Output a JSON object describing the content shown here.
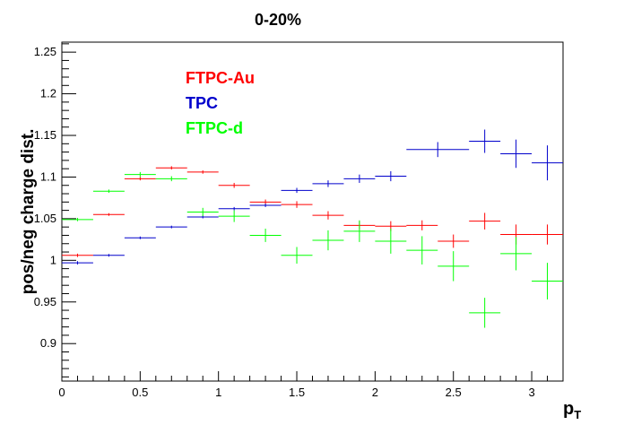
{
  "chart_data": {
    "type": "scatter",
    "title": "0-20%",
    "xlabel_main": "p",
    "xlabel_sub": "T",
    "ylabel": "pos/neg charge dist.",
    "xlim": [
      0,
      3.2
    ],
    "ylim": [
      0.855,
      1.262
    ],
    "x_ticks": [
      "0",
      "0.5",
      "1",
      "1.5",
      "2",
      "2.5",
      "3"
    ],
    "y_ticks": [
      "0.9",
      "0.95",
      "1",
      "1.05",
      "1.1",
      "1.15",
      "1.2",
      "1.25"
    ],
    "grid": false,
    "legend_placement": "top-left",
    "series": [
      {
        "name": "FTPC-Au",
        "color": "#ff0000",
        "points": [
          {
            "x": 0.1,
            "xerr": 0.1,
            "y": 1.006,
            "yerr": 0.002
          },
          {
            "x": 0.3,
            "xerr": 0.1,
            "y": 1.055,
            "yerr": 0.001
          },
          {
            "x": 0.5,
            "xerr": 0.1,
            "y": 1.098,
            "yerr": 0.002
          },
          {
            "x": 0.7,
            "xerr": 0.1,
            "y": 1.111,
            "yerr": 0.002
          },
          {
            "x": 0.9,
            "xerr": 0.1,
            "y": 1.106,
            "yerr": 0.002
          },
          {
            "x": 1.1,
            "xerr": 0.1,
            "y": 1.09,
            "yerr": 0.003
          },
          {
            "x": 1.3,
            "xerr": 0.1,
            "y": 1.07,
            "yerr": 0.003
          },
          {
            "x": 1.5,
            "xerr": 0.1,
            "y": 1.067,
            "yerr": 0.004
          },
          {
            "x": 1.7,
            "xerr": 0.1,
            "y": 1.054,
            "yerr": 0.005
          },
          {
            "x": 1.9,
            "xerr": 0.1,
            "y": 1.042,
            "yerr": 0.005
          },
          {
            "x": 2.1,
            "xerr": 0.1,
            "y": 1.041,
            "yerr": 0.006
          },
          {
            "x": 2.3,
            "xerr": 0.1,
            "y": 1.042,
            "yerr": 0.006
          },
          {
            "x": 2.5,
            "xerr": 0.1,
            "y": 1.023,
            "yerr": 0.008
          },
          {
            "x": 2.7,
            "xerr": 0.1,
            "y": 1.047,
            "yerr": 0.01
          },
          {
            "x": 2.9,
            "xerr": 0.1,
            "y": 1.031,
            "yerr": 0.012
          },
          {
            "x": 3.1,
            "xerr": 0.1,
            "y": 1.031,
            "yerr": 0.012
          }
        ]
      },
      {
        "name": "TPC",
        "color": "#0000cc",
        "points": [
          {
            "x": 0.1,
            "xerr": 0.1,
            "y": 0.997,
            "yerr": 0.002
          },
          {
            "x": 0.3,
            "xerr": 0.1,
            "y": 1.006,
            "yerr": 0.001
          },
          {
            "x": 0.5,
            "xerr": 0.1,
            "y": 1.027,
            "yerr": 0.001
          },
          {
            "x": 0.7,
            "xerr": 0.1,
            "y": 1.04,
            "yerr": 0.001
          },
          {
            "x": 0.9,
            "xerr": 0.1,
            "y": 1.052,
            "yerr": 0.001
          },
          {
            "x": 1.1,
            "xerr": 0.1,
            "y": 1.062,
            "yerr": 0.002
          },
          {
            "x": 1.3,
            "xerr": 0.1,
            "y": 1.066,
            "yerr": 0.002
          },
          {
            "x": 1.5,
            "xerr": 0.1,
            "y": 1.084,
            "yerr": 0.003
          },
          {
            "x": 1.7,
            "xerr": 0.1,
            "y": 1.092,
            "yerr": 0.004
          },
          {
            "x": 1.9,
            "xerr": 0.1,
            "y": 1.098,
            "yerr": 0.005
          },
          {
            "x": 2.1,
            "xerr": 0.1,
            "y": 1.101,
            "yerr": 0.006
          },
          {
            "x": 2.4,
            "xerr": 0.2,
            "y": 1.133,
            "yerr": 0.009
          },
          {
            "x": 2.7,
            "xerr": 0.1,
            "y": 1.143,
            "yerr": 0.014
          },
          {
            "x": 2.9,
            "xerr": 0.1,
            "y": 1.128,
            "yerr": 0.017
          },
          {
            "x": 3.1,
            "xerr": 0.1,
            "y": 1.117,
            "yerr": 0.021
          }
        ]
      },
      {
        "name": "FTPC-d",
        "color": "#00ff00",
        "points": [
          {
            "x": 0.1,
            "xerr": 0.1,
            "y": 1.049,
            "yerr": 0.002
          },
          {
            "x": 0.3,
            "xerr": 0.1,
            "y": 1.083,
            "yerr": 0.002
          },
          {
            "x": 0.5,
            "xerr": 0.1,
            "y": 1.103,
            "yerr": 0.003
          },
          {
            "x": 0.7,
            "xerr": 0.1,
            "y": 1.098,
            "yerr": 0.003
          },
          {
            "x": 0.9,
            "xerr": 0.1,
            "y": 1.058,
            "yerr": 0.005
          },
          {
            "x": 1.1,
            "xerr": 0.1,
            "y": 1.053,
            "yerr": 0.007
          },
          {
            "x": 1.3,
            "xerr": 0.1,
            "y": 1.03,
            "yerr": 0.008
          },
          {
            "x": 1.5,
            "xerr": 0.1,
            "y": 1.006,
            "yerr": 0.01
          },
          {
            "x": 1.7,
            "xerr": 0.1,
            "y": 1.024,
            "yerr": 0.012
          },
          {
            "x": 1.9,
            "xerr": 0.1,
            "y": 1.035,
            "yerr": 0.013
          },
          {
            "x": 2.1,
            "xerr": 0.1,
            "y": 1.023,
            "yerr": 0.015
          },
          {
            "x": 2.3,
            "xerr": 0.1,
            "y": 1.012,
            "yerr": 0.017
          },
          {
            "x": 2.5,
            "xerr": 0.1,
            "y": 0.993,
            "yerr": 0.018
          },
          {
            "x": 2.7,
            "xerr": 0.1,
            "y": 0.937,
            "yerr": 0.018
          },
          {
            "x": 2.9,
            "xerr": 0.1,
            "y": 1.008,
            "yerr": 0.02
          },
          {
            "x": 3.1,
            "xerr": 0.1,
            "y": 0.975,
            "yerr": 0.022
          }
        ]
      }
    ]
  }
}
